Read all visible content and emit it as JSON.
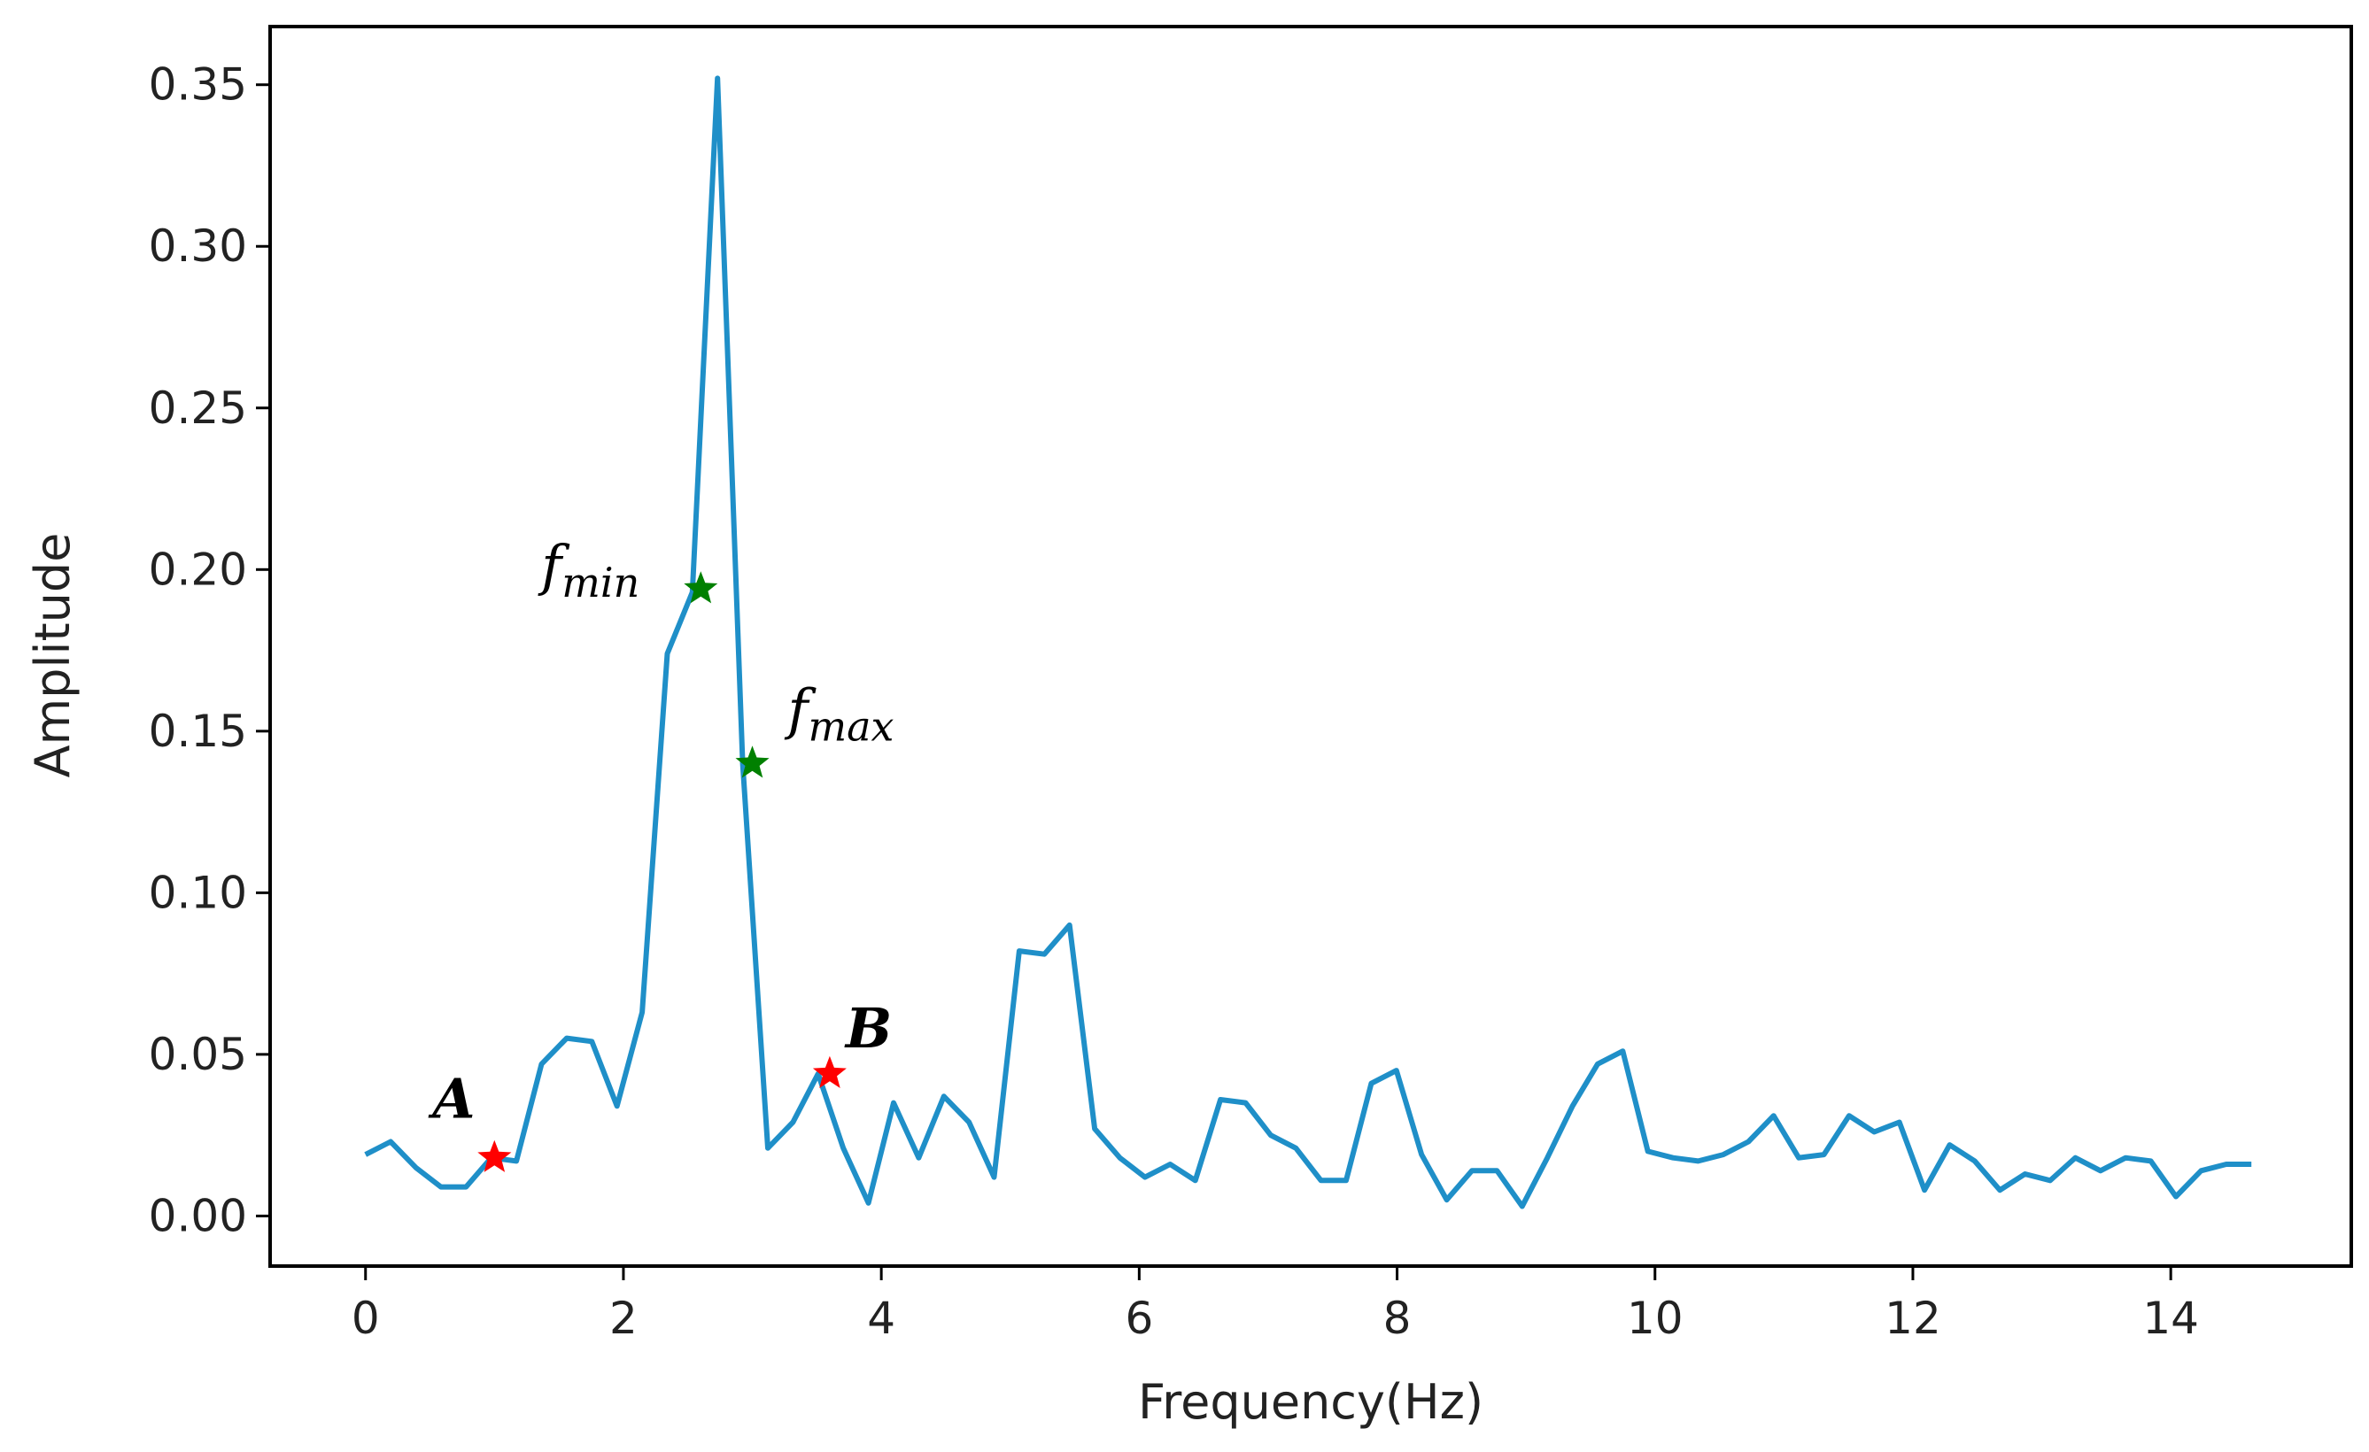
{
  "chart_data": {
    "type": "line",
    "title": "",
    "xlabel": "Frequency(Hz)",
    "ylabel": "Amplitude",
    "xlim": [
      -0.74,
      15.4
    ],
    "ylim": [
      -0.0155,
      0.368
    ],
    "xticks": [
      0,
      2,
      4,
      6,
      8,
      10,
      12,
      14
    ],
    "xtick_labels": [
      "0",
      "2",
      "4",
      "6",
      "8",
      "10",
      "12",
      "14"
    ],
    "yticks": [
      0.0,
      0.05,
      0.1,
      0.15,
      0.2,
      0.25,
      0.3,
      0.35
    ],
    "ytick_labels": [
      "0.00",
      "0.05",
      "0.10",
      "0.15",
      "0.20",
      "0.25",
      "0.30",
      "0.35"
    ],
    "grid": false,
    "line_color": "#1f8fc8",
    "series": [
      {
        "x": [
          0.0,
          0.195,
          0.39,
          0.585,
          0.78,
          0.975,
          1.17,
          1.365,
          1.56,
          1.755,
          1.95,
          2.145,
          2.34,
          2.535,
          2.73,
          2.925,
          3.12,
          3.315,
          3.51,
          3.705,
          3.9,
          4.095,
          4.29,
          4.485,
          4.68,
          4.875,
          5.07,
          5.265,
          5.46,
          5.655,
          5.85,
          6.045,
          6.24,
          6.435,
          6.63,
          6.825,
          7.02,
          7.215,
          7.41,
          7.605,
          7.8,
          7.995,
          8.19,
          8.385,
          8.58,
          8.775,
          8.97,
          9.165,
          9.36,
          9.555,
          9.75,
          9.945,
          10.14,
          10.335,
          10.53,
          10.725,
          10.92,
          11.115,
          11.31,
          11.505,
          11.7,
          11.895,
          12.09,
          12.285,
          12.48,
          12.675,
          12.87,
          13.065,
          13.26,
          13.455,
          13.65,
          13.845,
          14.04,
          14.235,
          14.43,
          14.625
        ],
        "y": [
          0.019,
          0.023,
          0.015,
          0.009,
          0.009,
          0.018,
          0.017,
          0.047,
          0.055,
          0.054,
          0.034,
          0.063,
          0.174,
          0.193,
          0.352,
          0.14,
          0.021,
          0.029,
          0.044,
          0.021,
          0.004,
          0.035,
          0.018,
          0.037,
          0.029,
          0.012,
          0.082,
          0.081,
          0.09,
          0.027,
          0.018,
          0.012,
          0.016,
          0.011,
          0.036,
          0.035,
          0.025,
          0.021,
          0.011,
          0.011,
          0.041,
          0.045,
          0.019,
          0.005,
          0.014,
          0.014,
          0.003,
          0.018,
          0.034,
          0.047,
          0.051,
          0.02,
          0.018,
          0.017,
          0.019,
          0.023,
          0.031,
          0.018,
          0.019,
          0.031,
          0.026,
          0.029,
          0.008,
          0.022,
          0.017,
          0.008,
          0.013,
          0.011,
          0.018,
          0.014,
          0.018,
          0.017,
          0.006,
          0.014,
          0.016,
          0.016
        ]
      }
    ],
    "markers": [
      {
        "label": "A",
        "x": 1.0,
        "y": 0.018,
        "color": "#ff0000"
      },
      {
        "label": "B",
        "x": 3.6,
        "y": 0.044,
        "color": "#ff0000"
      },
      {
        "label": "f",
        "subscript": "min",
        "x": 2.6,
        "y": 0.194,
        "color": "#008000"
      },
      {
        "label": "f",
        "subscript": "max",
        "x": 3.0,
        "y": 0.14,
        "color": "#008000"
      }
    ]
  }
}
